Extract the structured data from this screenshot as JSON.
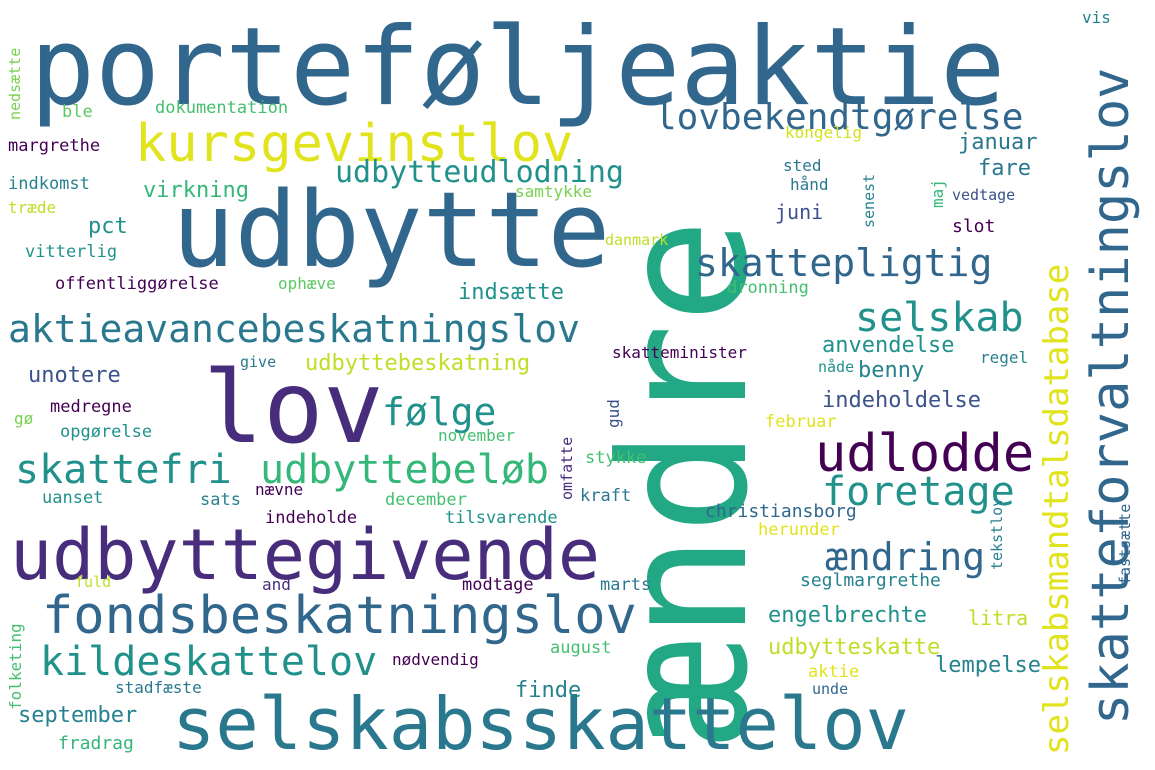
{
  "words": [
    {
      "text": "porteføljeaktie",
      "color": "#31668d"
    },
    {
      "text": "ændre",
      "color": "#22a884"
    },
    {
      "text": "udbytte",
      "color": "#31668d"
    },
    {
      "text": "lov",
      "color": "#472d7b"
    },
    {
      "text": "kursgevinstlov",
      "color": "#e1e31c"
    },
    {
      "text": "udbyttegivende",
      "color": "#472d7b"
    },
    {
      "text": "selskabsskattelov",
      "color": "#2a788e"
    },
    {
      "text": "fondsbeskatningslov",
      "color": "#31668d"
    },
    {
      "text": "aktieavancebeskatningslov",
      "color": "#2a788e"
    },
    {
      "text": "skattefri",
      "color": "#21918c"
    },
    {
      "text": "udbyttebeløb",
      "color": "#35b779"
    },
    {
      "text": "kildeskattelov",
      "color": "#21918c"
    },
    {
      "text": "udlodde",
      "color": "#440154"
    },
    {
      "text": "foretage",
      "color": "#21918c"
    },
    {
      "text": "lovbekendtgørelse",
      "color": "#31668d"
    },
    {
      "text": "skattepligtig",
      "color": "#31668d"
    },
    {
      "text": "selskab",
      "color": "#21918c"
    },
    {
      "text": "ændring",
      "color": "#31668d"
    },
    {
      "text": "følge",
      "color": "#21918c"
    },
    {
      "text": "udbytteudlodning",
      "color": "#21918c"
    },
    {
      "text": "skatteforvaltningslov",
      "color": "#31668d"
    },
    {
      "text": "selskabsmandtalsdatabase",
      "color": "#e1e31c"
    },
    {
      "text": "udbyttebeskatning",
      "color": "#bddf26"
    },
    {
      "text": "engelbrechte",
      "color": "#21918c"
    },
    {
      "text": "udbytteskatte",
      "color": "#bddf26"
    },
    {
      "text": "indeholdelse",
      "color": "#3b528b"
    },
    {
      "text": "anvendelse",
      "color": "#21918c"
    },
    {
      "text": "benny",
      "color": "#26828e"
    },
    {
      "text": "januar",
      "color": "#2a788e"
    },
    {
      "text": "fare",
      "color": "#2a788e"
    },
    {
      "text": "lempelse",
      "color": "#26828e"
    },
    {
      "text": "litra",
      "color": "#bddf26"
    },
    {
      "text": "seglmargrethe",
      "color": "#26828e"
    },
    {
      "text": "christiansborg",
      "color": "#31668d"
    },
    {
      "text": "herunder",
      "color": "#e1e31c"
    },
    {
      "text": "indsætte",
      "color": "#21918c"
    },
    {
      "text": "pct",
      "color": "#21918c"
    },
    {
      "text": "virkning",
      "color": "#35b779"
    },
    {
      "text": "juni",
      "color": "#3b528b"
    },
    {
      "text": "unotere",
      "color": "#3b528b"
    },
    {
      "text": "finde",
      "color": "#26828e"
    },
    {
      "text": "september",
      "color": "#26828e"
    },
    {
      "text": "fradrag",
      "color": "#35b779"
    },
    {
      "text": "indkomst",
      "color": "#26828e"
    },
    {
      "text": "margrethe",
      "color": "#440154"
    },
    {
      "text": "ble",
      "color": "#5dc863"
    },
    {
      "text": "dokumentation",
      "color": "#44bf70"
    },
    {
      "text": "træde",
      "color": "#bddf26"
    },
    {
      "text": "vitterlig",
      "color": "#21918c"
    },
    {
      "text": "offentliggørelse",
      "color": "#440154"
    },
    {
      "text": "ophæve",
      "color": "#5dc863"
    },
    {
      "text": "samtykke",
      "color": "#7ad151"
    },
    {
      "text": "danmark",
      "color": "#bddf26"
    },
    {
      "text": "dronning",
      "color": "#44bf70"
    },
    {
      "text": "kongelig",
      "color": "#d2e21b"
    },
    {
      "text": "sted",
      "color": "#2a788e"
    },
    {
      "text": "hånd",
      "color": "#2a788e"
    },
    {
      "text": "slot",
      "color": "#440154"
    },
    {
      "text": "vedtage",
      "color": "#3b528b"
    },
    {
      "text": "maj",
      "color": "#35b779"
    },
    {
      "text": "senest",
      "color": "#26828e"
    },
    {
      "text": "skatteminister",
      "color": "#440154"
    },
    {
      "text": "nåde",
      "color": "#21918c"
    },
    {
      "text": "regel",
      "color": "#26828e"
    },
    {
      "text": "give",
      "color": "#2a788e"
    },
    {
      "text": "medregne",
      "color": "#440154"
    },
    {
      "text": "gø",
      "color": "#7ad151"
    },
    {
      "text": "opgørelse",
      "color": "#21918c"
    },
    {
      "text": "november",
      "color": "#44bf70"
    },
    {
      "text": "februar",
      "color": "#e1e31c"
    },
    {
      "text": "omfatte",
      "color": "#472d7b"
    },
    {
      "text": "gud",
      "color": "#3b528b"
    },
    {
      "text": "stykke",
      "color": "#44bf70"
    },
    {
      "text": "kraft",
      "color": "#2a788e"
    },
    {
      "text": "nævne",
      "color": "#440154"
    },
    {
      "text": "sats",
      "color": "#26828e"
    },
    {
      "text": "uanset",
      "color": "#21918c"
    },
    {
      "text": "december",
      "color": "#44bf70"
    },
    {
      "text": "indeholde",
      "color": "#440154"
    },
    {
      "text": "tilsvarende",
      "color": "#21918c"
    },
    {
      "text": "fuld",
      "color": "#bddf26"
    },
    {
      "text": "and",
      "color": "#472d7b"
    },
    {
      "text": "modtage",
      "color": "#440154"
    },
    {
      "text": "marts",
      "color": "#2a788e"
    },
    {
      "text": "august",
      "color": "#44bf70"
    },
    {
      "text": "nødvendig",
      "color": "#440154"
    },
    {
      "text": "stadfæste",
      "color": "#2a788e"
    },
    {
      "text": "aktie",
      "color": "#e1e31c"
    },
    {
      "text": "unde",
      "color": "#31668d"
    },
    {
      "text": "tekstlov",
      "color": "#26828e"
    },
    {
      "text": "fastsætte",
      "color": "#31668d"
    },
    {
      "text": "folketing",
      "color": "#44bf70"
    },
    {
      "text": "nedsætte",
      "color": "#7ad151"
    },
    {
      "text": "vis",
      "color": "#26828e"
    }
  ]
}
